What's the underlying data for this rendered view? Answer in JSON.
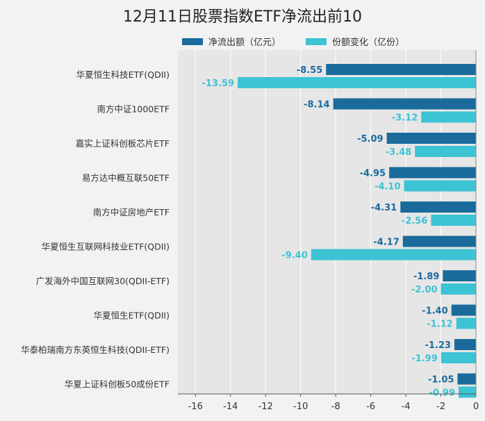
{
  "chart_data": {
    "type": "bar",
    "orientation": "horizontal",
    "title": "12月11日股票指数ETF净流出前10",
    "categories": [
      "华夏恒生科技ETF(QDII)",
      "南方中证1000ETF",
      "嘉实上证科创板芯片ETF",
      "易方达中概互联50ETF",
      "南方中证房地产ETF",
      "华夏恒生互联网科技业ETF(QDII)",
      "广发海外中国互联网30(QDII-ETF)",
      "华夏恒生ETF(QDII)",
      "华泰柏瑞南方东英恒生科技(QDII-ETF)",
      "华夏上证科创板50成份ETF"
    ],
    "series": [
      {
        "name": "净流出额（亿元）",
        "color": "#1a6b9c",
        "values": [
          -8.55,
          -8.14,
          -5.09,
          -4.95,
          -4.31,
          -4.17,
          -1.89,
          -1.4,
          -1.23,
          -1.05
        ],
        "labels": [
          "-8.55",
          "-8.14",
          "-5.09",
          "-4.95",
          "-4.31",
          "-4.17",
          "-1.89",
          "-1.40",
          "-1.23",
          "-1.05"
        ]
      },
      {
        "name": "份额变化（亿份）",
        "color": "#3cc3d4",
        "values": [
          -13.59,
          -3.12,
          -3.48,
          -4.1,
          -2.56,
          -9.4,
          -2.0,
          -1.12,
          -1.99,
          -0.99
        ],
        "labels": [
          "-13.59",
          "-3.12",
          "-3.48",
          "-4.10",
          "-2.56",
          "-9.40",
          "-2.00",
          "-1.12",
          "-1.99",
          "-0.99"
        ]
      }
    ],
    "xlim": [
      -17,
      0
    ],
    "xticks": [
      -16,
      -14,
      -12,
      -10,
      -8,
      -6,
      -4,
      -2,
      0
    ],
    "xtick_labels": [
      "-16",
      "-14",
      "-12",
      "-10",
      "-8",
      "-6",
      "-4",
      "-2",
      "0"
    ],
    "grid": true,
    "legend_position": "top",
    "plot_background": "#e6e6e6",
    "grid_color": "#ffffff"
  }
}
